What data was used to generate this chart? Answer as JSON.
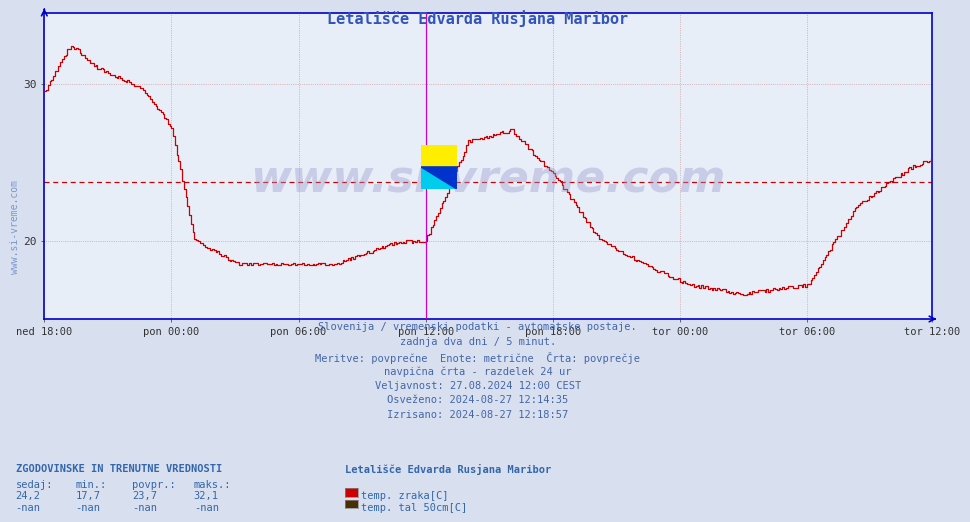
{
  "title": "Letališče Edvarda Rusjana Maribor",
  "title_color": "#3355bb",
  "bg_color": "#d8e0f0",
  "plot_bg_color": "#e8eef8",
  "grid_color_h": "#cc8888",
  "grid_color_v": "#cc8888",
  "axis_color": "#0000cc",
  "line_color": "#cc0000",
  "avg_line_color": "#cc0000",
  "ylabel_left": "",
  "xlabel": "",
  "x_tick_labels": [
    "ned 18:00",
    "pon 00:00",
    "pon 06:00",
    "pon 12:00",
    "pon 18:00",
    "tor 00:00",
    "tor 06:00",
    "tor 12:00"
  ],
  "x_tick_positions": [
    0,
    72,
    144,
    216,
    288,
    360,
    432,
    503
  ],
  "y_ticks": [
    20,
    30
  ],
  "ylim": [
    15.0,
    34.5
  ],
  "xlim": [
    0,
    503
  ],
  "avg_value": 23.7,
  "watermark": "www.si-vreme.com",
  "footer_lines": [
    "Slovenija / vremenski podatki - avtomatske postaje.",
    "zadnja dva dni / 5 minut.",
    "Meritve: povprečne  Enote: metrične  Črta: povprečje",
    "navpična črta - razdelek 24 ur",
    "Veljavnost: 27.08.2024 12:00 CEST",
    "Osveženo: 2024-08-27 12:14:35",
    "Izrisano: 2024-08-27 12:18:57"
  ],
  "legend_title": "Letališče Edvarda Rusjana Maribor",
  "legend_items": [
    {
      "label": "temp. zraka[C]",
      "color": "#cc0000"
    },
    {
      "label": "temp. tal 50cm[C]",
      "color": "#4a3000"
    }
  ],
  "table_headers": [
    "sedaj:",
    "min.:",
    "povpr.:",
    "maks.:"
  ],
  "table_rows": [
    [
      "24,2",
      "17,7",
      "23,7",
      "32,1"
    ],
    [
      "-nan",
      "-nan",
      "-nan",
      "-nan"
    ]
  ],
  "table_label": "ZGODOVINSKE IN TRENUTNE VREDNOSTI",
  "vertical_line_x": 216,
  "vertical_line2_x": 503,
  "vertical_line_color": "#cc00cc",
  "n_points": 504
}
